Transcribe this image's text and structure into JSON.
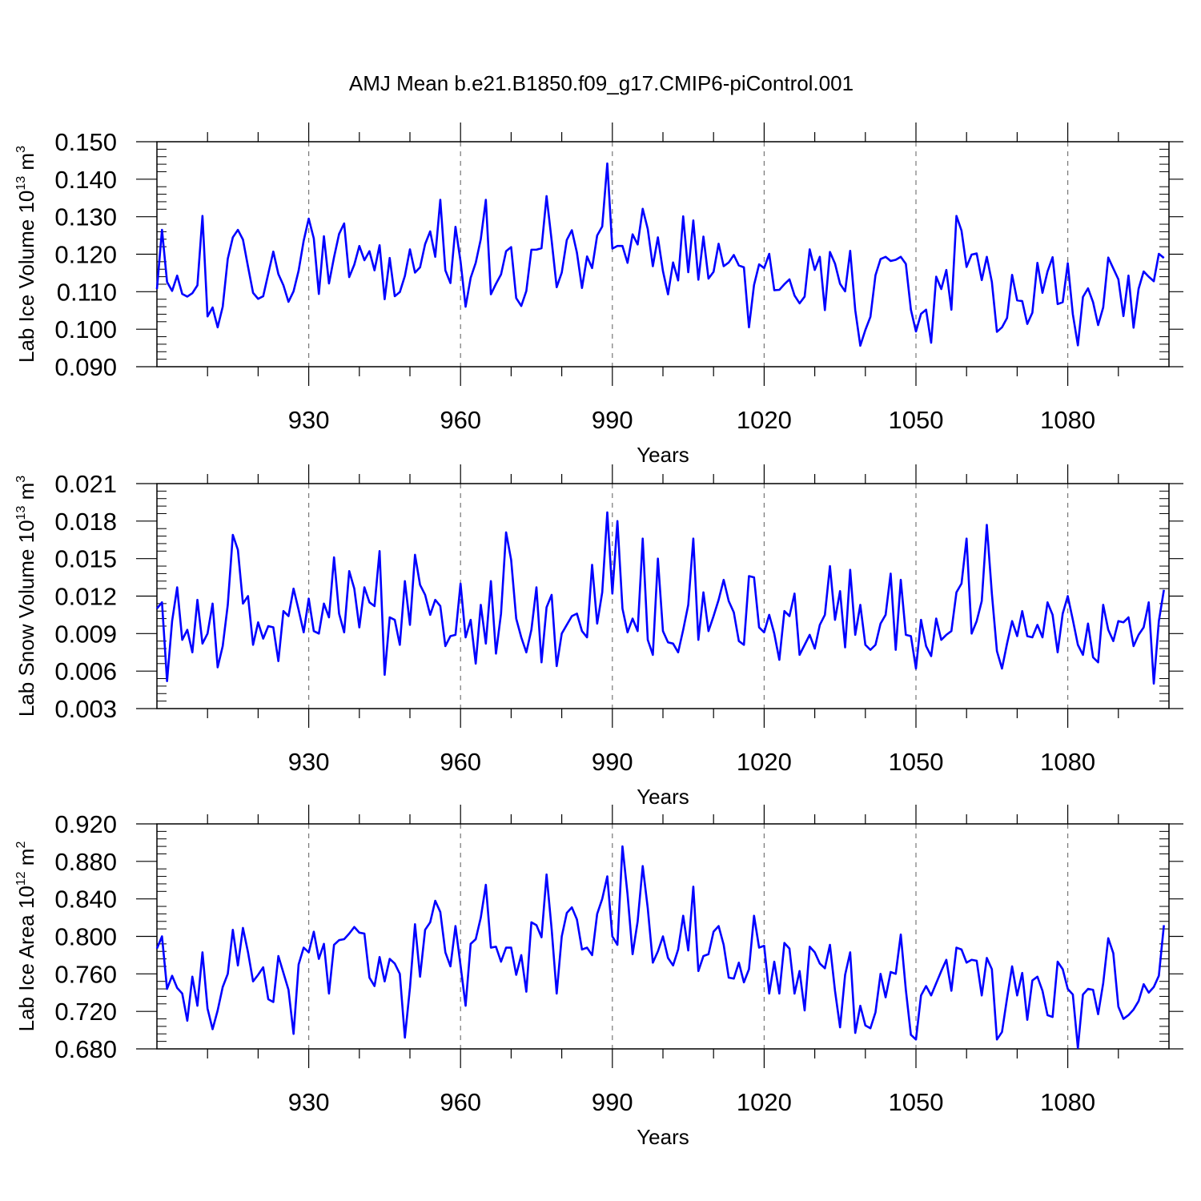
{
  "title": "AMJ Mean b.e21.B1850.f09_g17.CMIP6-piControl.001",
  "colors": {
    "line": "#0000ff",
    "axis": "#000000",
    "grid": "#777777"
  },
  "chart_data": [
    {
      "type": "line",
      "ylabel_main": "Lab Ice Volume 10",
      "ylabel_exp": "13",
      "ylabel_unit": " m",
      "ylabel_unit_exp": "3",
      "xlabel": "Years",
      "xlim": [
        900,
        1100
      ],
      "ylim": [
        0.09,
        0.15
      ],
      "x_ticks": [
        930,
        960,
        990,
        1020,
        1050,
        1080
      ],
      "y_ticks": [
        0.09,
        0.1,
        0.11,
        0.12,
        0.13,
        0.14,
        0.15
      ],
      "y_tick_labels": [
        "0.090",
        "0.100",
        "0.110",
        "0.120",
        "0.130",
        "0.140",
        "0.150"
      ],
      "grid": "vertical dashed at major x ticks",
      "x_start": 900,
      "values": [
        0.1107,
        0.1265,
        0.1126,
        0.1102,
        0.1143,
        0.1094,
        0.1087,
        0.1096,
        0.1117,
        0.1302,
        0.1034,
        0.1058,
        0.1005,
        0.106,
        0.1188,
        0.1245,
        0.1265,
        0.1239,
        0.1167,
        0.1097,
        0.1081,
        0.1088,
        0.1148,
        0.1207,
        0.1147,
        0.1117,
        0.1073,
        0.1101,
        0.1156,
        0.1236,
        0.1295,
        0.1242,
        0.1094,
        0.1248,
        0.1122,
        0.1192,
        0.1254,
        0.1282,
        0.1139,
        0.1172,
        0.1222,
        0.1184,
        0.1208,
        0.1157,
        0.1224,
        0.108,
        0.119,
        0.1088,
        0.1099,
        0.1142,
        0.1213,
        0.1151,
        0.1165,
        0.1227,
        0.1261,
        0.1193,
        0.1345,
        0.1157,
        0.1123,
        0.1273,
        0.1181,
        0.106,
        0.1137,
        0.1177,
        0.124,
        0.1345,
        0.1093,
        0.1121,
        0.1146,
        0.1208,
        0.1219,
        0.1083,
        0.1062,
        0.1102,
        0.1212,
        0.1212,
        0.1216,
        0.1355,
        0.1237,
        0.1112,
        0.1151,
        0.1238,
        0.1264,
        0.1204,
        0.111,
        0.1194,
        0.1163,
        0.125,
        0.1274,
        0.1442,
        0.1215,
        0.1222,
        0.1222,
        0.1177,
        0.1253,
        0.1226,
        0.1321,
        0.1267,
        0.1168,
        0.1245,
        0.1155,
        0.1093,
        0.1178,
        0.113,
        0.1301,
        0.1152,
        0.129,
        0.1132,
        0.1247,
        0.1135,
        0.1153,
        0.1228,
        0.1168,
        0.1178,
        0.1198,
        0.117,
        0.1165,
        0.1005,
        0.1118,
        0.1173,
        0.1163,
        0.1201,
        0.1104,
        0.1105,
        0.112,
        0.1133,
        0.109,
        0.1069,
        0.1087,
        0.1213,
        0.1158,
        0.1193,
        0.1051,
        0.1206,
        0.1175,
        0.1121,
        0.1101,
        0.1209,
        0.1051,
        0.0956,
        0.0998,
        0.1033,
        0.1144,
        0.1187,
        0.1193,
        0.1182,
        0.1185,
        0.1193,
        0.1174,
        0.1052,
        0.0994,
        0.1041,
        0.1052,
        0.0964,
        0.114,
        0.1107,
        0.1158,
        0.1052,
        0.1302,
        0.1263,
        0.1166,
        0.1199,
        0.1202,
        0.1131,
        0.1193,
        0.1126,
        0.0993,
        0.1005,
        0.103,
        0.1145,
        0.1077,
        0.1075,
        0.1014,
        0.1044,
        0.1177,
        0.1097,
        0.1154,
        0.1192,
        0.1067,
        0.1072,
        0.1176,
        0.104,
        0.0957,
        0.1086,
        0.1109,
        0.1072,
        0.1011,
        0.1058,
        0.1191,
        0.1162,
        0.1133,
        0.1035,
        0.1143,
        0.1004,
        0.1108,
        0.1154,
        0.114,
        0.1128,
        0.1201,
        0.119
      ]
    },
    {
      "type": "line",
      "ylabel_main": "Lab Snow Volume 10",
      "ylabel_exp": "13",
      "ylabel_unit": " m",
      "ylabel_unit_exp": "3",
      "xlabel": "Years",
      "xlim": [
        900,
        1100
      ],
      "ylim": [
        0.003,
        0.021
      ],
      "x_ticks": [
        930,
        960,
        990,
        1020,
        1050,
        1080
      ],
      "y_ticks": [
        0.003,
        0.006,
        0.009,
        0.012,
        0.015,
        0.018,
        0.021
      ],
      "y_tick_labels": [
        "0.003",
        "0.006",
        "0.009",
        "0.012",
        "0.015",
        "0.018",
        "0.021"
      ],
      "grid": "vertical dashed at major x ticks",
      "x_start": 900,
      "values": [
        0.011,
        0.0115,
        0.0052,
        0.01,
        0.0127,
        0.0085,
        0.0093,
        0.0075,
        0.0117,
        0.0082,
        0.009,
        0.0114,
        0.0063,
        0.008,
        0.0113,
        0.0169,
        0.0157,
        0.0114,
        0.012,
        0.0081,
        0.0099,
        0.0086,
        0.0096,
        0.0095,
        0.0068,
        0.0108,
        0.0104,
        0.0126,
        0.0109,
        0.0091,
        0.0118,
        0.0092,
        0.009,
        0.0114,
        0.0103,
        0.0151,
        0.0106,
        0.0091,
        0.014,
        0.0126,
        0.0095,
        0.0127,
        0.0115,
        0.0112,
        0.0156,
        0.0057,
        0.0103,
        0.0101,
        0.0081,
        0.0132,
        0.0097,
        0.0153,
        0.0129,
        0.0121,
        0.0105,
        0.0117,
        0.0112,
        0.008,
        0.0088,
        0.0089,
        0.013,
        0.0087,
        0.0101,
        0.0066,
        0.0113,
        0.0082,
        0.0132,
        0.0074,
        0.0106,
        0.0171,
        0.0149,
        0.0102,
        0.0087,
        0.0075,
        0.0093,
        0.0127,
        0.0067,
        0.0111,
        0.0121,
        0.0064,
        0.009,
        0.0097,
        0.0104,
        0.0106,
        0.0092,
        0.0087,
        0.0145,
        0.0098,
        0.0123,
        0.0187,
        0.0122,
        0.018,
        0.011,
        0.0091,
        0.0102,
        0.0092,
        0.0166,
        0.0085,
        0.0073,
        0.015,
        0.0092,
        0.0083,
        0.0082,
        0.0075,
        0.0093,
        0.0113,
        0.0166,
        0.0085,
        0.0123,
        0.0092,
        0.0104,
        0.0117,
        0.0133,
        0.0116,
        0.0107,
        0.0084,
        0.0081,
        0.0136,
        0.0135,
        0.0095,
        0.0091,
        0.0105,
        0.009,
        0.0069,
        0.0108,
        0.0104,
        0.0122,
        0.0073,
        0.0081,
        0.0089,
        0.0078,
        0.0097,
        0.0105,
        0.0144,
        0.0101,
        0.0124,
        0.0079,
        0.0141,
        0.0089,
        0.0113,
        0.0081,
        0.0077,
        0.0081,
        0.0098,
        0.0105,
        0.0138,
        0.0077,
        0.0133,
        0.0089,
        0.0088,
        0.0062,
        0.0101,
        0.008,
        0.0072,
        0.0102,
        0.0085,
        0.0089,
        0.0092,
        0.0123,
        0.013,
        0.0166,
        0.009,
        0.01,
        0.0116,
        0.0177,
        0.0122,
        0.0076,
        0.0062,
        0.0082,
        0.01,
        0.0088,
        0.0108,
        0.0088,
        0.0087,
        0.0097,
        0.0087,
        0.0115,
        0.0105,
        0.0075,
        0.0106,
        0.012,
        0.0101,
        0.0081,
        0.0073,
        0.0098,
        0.0071,
        0.0067,
        0.0113,
        0.0093,
        0.0084,
        0.01,
        0.0099,
        0.0103,
        0.008,
        0.0089,
        0.0095,
        0.0115,
        0.005,
        0.01,
        0.0125
      ]
    },
    {
      "type": "line",
      "ylabel_main": "Lab Ice Area 10",
      "ylabel_exp": "12",
      "ylabel_unit": " m",
      "ylabel_unit_exp": "2",
      "xlabel": "Years",
      "xlim": [
        900,
        1100
      ],
      "ylim": [
        0.68,
        0.92
      ],
      "x_ticks": [
        930,
        960,
        990,
        1020,
        1050,
        1080
      ],
      "y_ticks": [
        0.68,
        0.72,
        0.76,
        0.8,
        0.84,
        0.88,
        0.92
      ],
      "y_tick_labels": [
        "0.680",
        "0.720",
        "0.760",
        "0.800",
        "0.840",
        "0.880",
        "0.920"
      ],
      "grid": "vertical dashed at major x ticks",
      "x_start": 900,
      "values": [
        0.787,
        0.8,
        0.744,
        0.758,
        0.745,
        0.739,
        0.71,
        0.757,
        0.726,
        0.783,
        0.723,
        0.701,
        0.721,
        0.746,
        0.76,
        0.807,
        0.769,
        0.809,
        0.783,
        0.752,
        0.759,
        0.767,
        0.733,
        0.73,
        0.779,
        0.761,
        0.743,
        0.696,
        0.77,
        0.788,
        0.783,
        0.805,
        0.776,
        0.792,
        0.739,
        0.791,
        0.796,
        0.797,
        0.803,
        0.81,
        0.804,
        0.803,
        0.756,
        0.747,
        0.778,
        0.752,
        0.776,
        0.771,
        0.76,
        0.692,
        0.745,
        0.813,
        0.757,
        0.807,
        0.815,
        0.838,
        0.826,
        0.783,
        0.768,
        0.811,
        0.769,
        0.726,
        0.792,
        0.797,
        0.82,
        0.855,
        0.788,
        0.789,
        0.773,
        0.788,
        0.788,
        0.759,
        0.78,
        0.741,
        0.815,
        0.812,
        0.799,
        0.866,
        0.808,
        0.739,
        0.8,
        0.825,
        0.831,
        0.818,
        0.786,
        0.788,
        0.78,
        0.824,
        0.84,
        0.864,
        0.8,
        0.791,
        0.896,
        0.845,
        0.781,
        0.816,
        0.875,
        0.83,
        0.772,
        0.784,
        0.8,
        0.777,
        0.769,
        0.786,
        0.822,
        0.785,
        0.853,
        0.763,
        0.779,
        0.781,
        0.805,
        0.811,
        0.791,
        0.756,
        0.755,
        0.772,
        0.751,
        0.765,
        0.822,
        0.788,
        0.79,
        0.739,
        0.773,
        0.739,
        0.793,
        0.787,
        0.739,
        0.763,
        0.721,
        0.789,
        0.783,
        0.771,
        0.766,
        0.791,
        0.742,
        0.703,
        0.759,
        0.783,
        0.697,
        0.726,
        0.705,
        0.702,
        0.719,
        0.76,
        0.735,
        0.762,
        0.76,
        0.802,
        0.743,
        0.695,
        0.69,
        0.737,
        0.747,
        0.737,
        0.75,
        0.763,
        0.775,
        0.742,
        0.788,
        0.786,
        0.772,
        0.775,
        0.774,
        0.737,
        0.777,
        0.765,
        0.69,
        0.698,
        0.734,
        0.768,
        0.737,
        0.761,
        0.711,
        0.753,
        0.757,
        0.742,
        0.716,
        0.714,
        0.773,
        0.765,
        0.744,
        0.738,
        0.681,
        0.738,
        0.744,
        0.743,
        0.717,
        0.75,
        0.798,
        0.782,
        0.725,
        0.712,
        0.716,
        0.722,
        0.731,
        0.749,
        0.74,
        0.746,
        0.758,
        0.812
      ]
    }
  ]
}
